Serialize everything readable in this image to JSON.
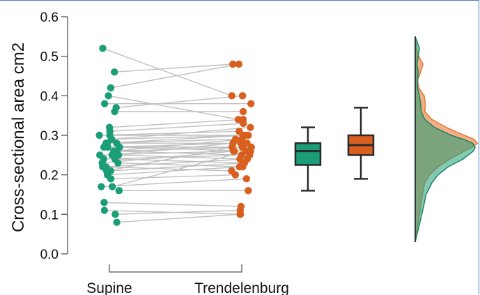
{
  "chart_data": {
    "type": "raincloud",
    "ylabel": "Cross-sectional area cm2",
    "ylim": [
      0.0,
      0.6
    ],
    "yticks": [
      "0.0",
      "0.1",
      "0.2",
      "0.3",
      "0.4",
      "0.5",
      "0.6"
    ],
    "categories": [
      "Supine",
      "Trendelenburg"
    ],
    "colors": {
      "Supine": "#1b9e77",
      "Trendelenburg": "#d95f1f",
      "lines": "#c0c0c0"
    },
    "pairs": [
      [
        0.52,
        0.4
      ],
      [
        0.46,
        0.48
      ],
      [
        0.42,
        0.48
      ],
      [
        0.4,
        0.34
      ],
      [
        0.38,
        0.38
      ],
      [
        0.37,
        0.4
      ],
      [
        0.36,
        0.36
      ],
      [
        0.32,
        0.34
      ],
      [
        0.31,
        0.33
      ],
      [
        0.3,
        0.3
      ],
      [
        0.3,
        0.31
      ],
      [
        0.29,
        0.32
      ],
      [
        0.29,
        0.3
      ],
      [
        0.28,
        0.29
      ],
      [
        0.28,
        0.28
      ],
      [
        0.28,
        0.3
      ],
      [
        0.27,
        0.27
      ],
      [
        0.27,
        0.28
      ],
      [
        0.27,
        0.26
      ],
      [
        0.26,
        0.29
      ],
      [
        0.26,
        0.27
      ],
      [
        0.26,
        0.25
      ],
      [
        0.25,
        0.26
      ],
      [
        0.25,
        0.28
      ],
      [
        0.25,
        0.24
      ],
      [
        0.24,
        0.25
      ],
      [
        0.24,
        0.23
      ],
      [
        0.23,
        0.26
      ],
      [
        0.23,
        0.22
      ],
      [
        0.22,
        0.24
      ],
      [
        0.22,
        0.21
      ],
      [
        0.21,
        0.23
      ],
      [
        0.21,
        0.27
      ],
      [
        0.2,
        0.22
      ],
      [
        0.19,
        0.2
      ],
      [
        0.17,
        0.19
      ],
      [
        0.17,
        0.26
      ],
      [
        0.16,
        0.16
      ],
      [
        0.13,
        0.12
      ],
      [
        0.11,
        0.1
      ],
      [
        0.1,
        0.11
      ],
      [
        0.08,
        0.1
      ]
    ],
    "boxplots": [
      {
        "group": "Supine",
        "whisker_low": 0.16,
        "q1": 0.225,
        "median": 0.26,
        "q3": 0.28,
        "whisker_high": 0.32
      },
      {
        "group": "Trendelenburg",
        "whisker_low": 0.19,
        "q1": 0.25,
        "median": 0.275,
        "q3": 0.3,
        "whisker_high": 0.37
      }
    ],
    "density": {
      "y": [
        0.03,
        0.08,
        0.12,
        0.15,
        0.18,
        0.2,
        0.22,
        0.24,
        0.26,
        0.27,
        0.28,
        0.29,
        0.3,
        0.32,
        0.34,
        0.36,
        0.38,
        0.4,
        0.42,
        0.44,
        0.46,
        0.48,
        0.5,
        0.52,
        0.55
      ],
      "Supine": [
        0.0,
        0.08,
        0.14,
        0.18,
        0.28,
        0.38,
        0.55,
        0.8,
        0.97,
        1.0,
        0.96,
        0.8,
        0.6,
        0.32,
        0.16,
        0.1,
        0.09,
        0.07,
        0.04,
        0.04,
        0.05,
        0.03,
        0.05,
        0.07,
        0.0
      ],
      "Trendelenburg": [
        0.0,
        0.05,
        0.09,
        0.12,
        0.16,
        0.24,
        0.38,
        0.58,
        0.82,
        0.95,
        1.04,
        0.98,
        0.82,
        0.52,
        0.28,
        0.16,
        0.17,
        0.15,
        0.06,
        0.04,
        0.09,
        0.13,
        0.06,
        0.02,
        0.0
      ]
    }
  }
}
